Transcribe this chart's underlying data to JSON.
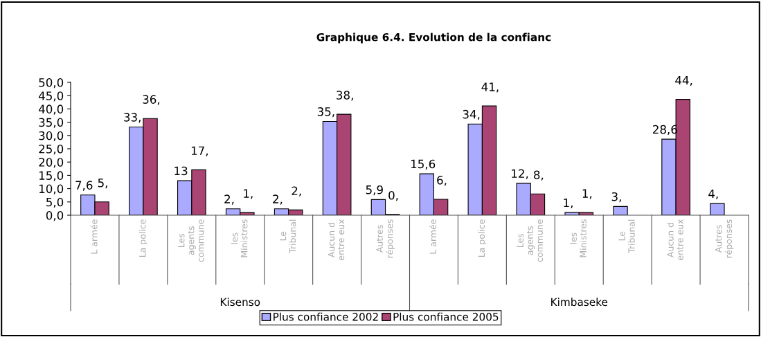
{
  "chart_data": {
    "type": "bar",
    "title": "Graphique 6.4. Evolution de la confianc",
    "categories": [
      "L armée",
      "La police",
      "Les\nagents\ncommune",
      "les\nMinistres",
      "Le\nTribunal",
      "Aucun d\nentre eux",
      "Autres\nréponses",
      "L armée",
      "La police",
      "Les\nagents\ncommune",
      "les\nMinistres",
      "Le\nTribunal",
      "Aucun d\nentre eux",
      "Autres\nréponses"
    ],
    "series": [
      {
        "name": "Plus confiance 2002",
        "color": "#aaaaff",
        "values": [
          7.6,
          33.2,
          13.0,
          2.4,
          2.4,
          35.3,
          5.9,
          15.6,
          34.3,
          12.0,
          1.0,
          3.3,
          28.6,
          4.4
        ],
        "value_labels": [
          "7,6",
          "33,",
          "13",
          "2,",
          "2,",
          "35,",
          "5,9",
          "15,6",
          "34,",
          "12,",
          "1,",
          "3,",
          "28,6",
          "4,"
        ]
      },
      {
        "name": "Plus confiance 2005",
        "color": "#aa4473",
        "values": [
          5.0,
          36.4,
          17.1,
          1.0,
          2.0,
          38.0,
          0.3,
          6.0,
          41.1,
          8.0,
          1.0,
          null,
          43.6,
          null
        ],
        "value_labels": [
          "5,",
          "36,",
          "17,",
          "1,",
          "2,",
          "38,",
          "0,",
          "6,",
          "41,",
          "8,",
          "1,",
          null,
          "44,",
          null
        ]
      }
    ],
    "ylim": [
      0,
      50
    ],
    "yticks": [
      {
        "value": 0,
        "label": "0,0"
      },
      {
        "value": 5,
        "label": "5,0"
      },
      {
        "value": 10,
        "label": "10,0"
      },
      {
        "value": 15,
        "label": "15,0"
      },
      {
        "value": 20,
        "label": "20,0"
      },
      {
        "value": 25,
        "label": "25,0"
      },
      {
        "value": 30,
        "label": "30,0"
      },
      {
        "value": 35,
        "label": "35,0"
      },
      {
        "value": 40,
        "label": "40,0"
      },
      {
        "value": 45,
        "label": "45,0"
      },
      {
        "value": 50,
        "label": "50,0"
      }
    ],
    "annotations": [
      "Kisenso",
      "Kimbaseke"
    ],
    "grid": false,
    "legend": "bottom"
  }
}
